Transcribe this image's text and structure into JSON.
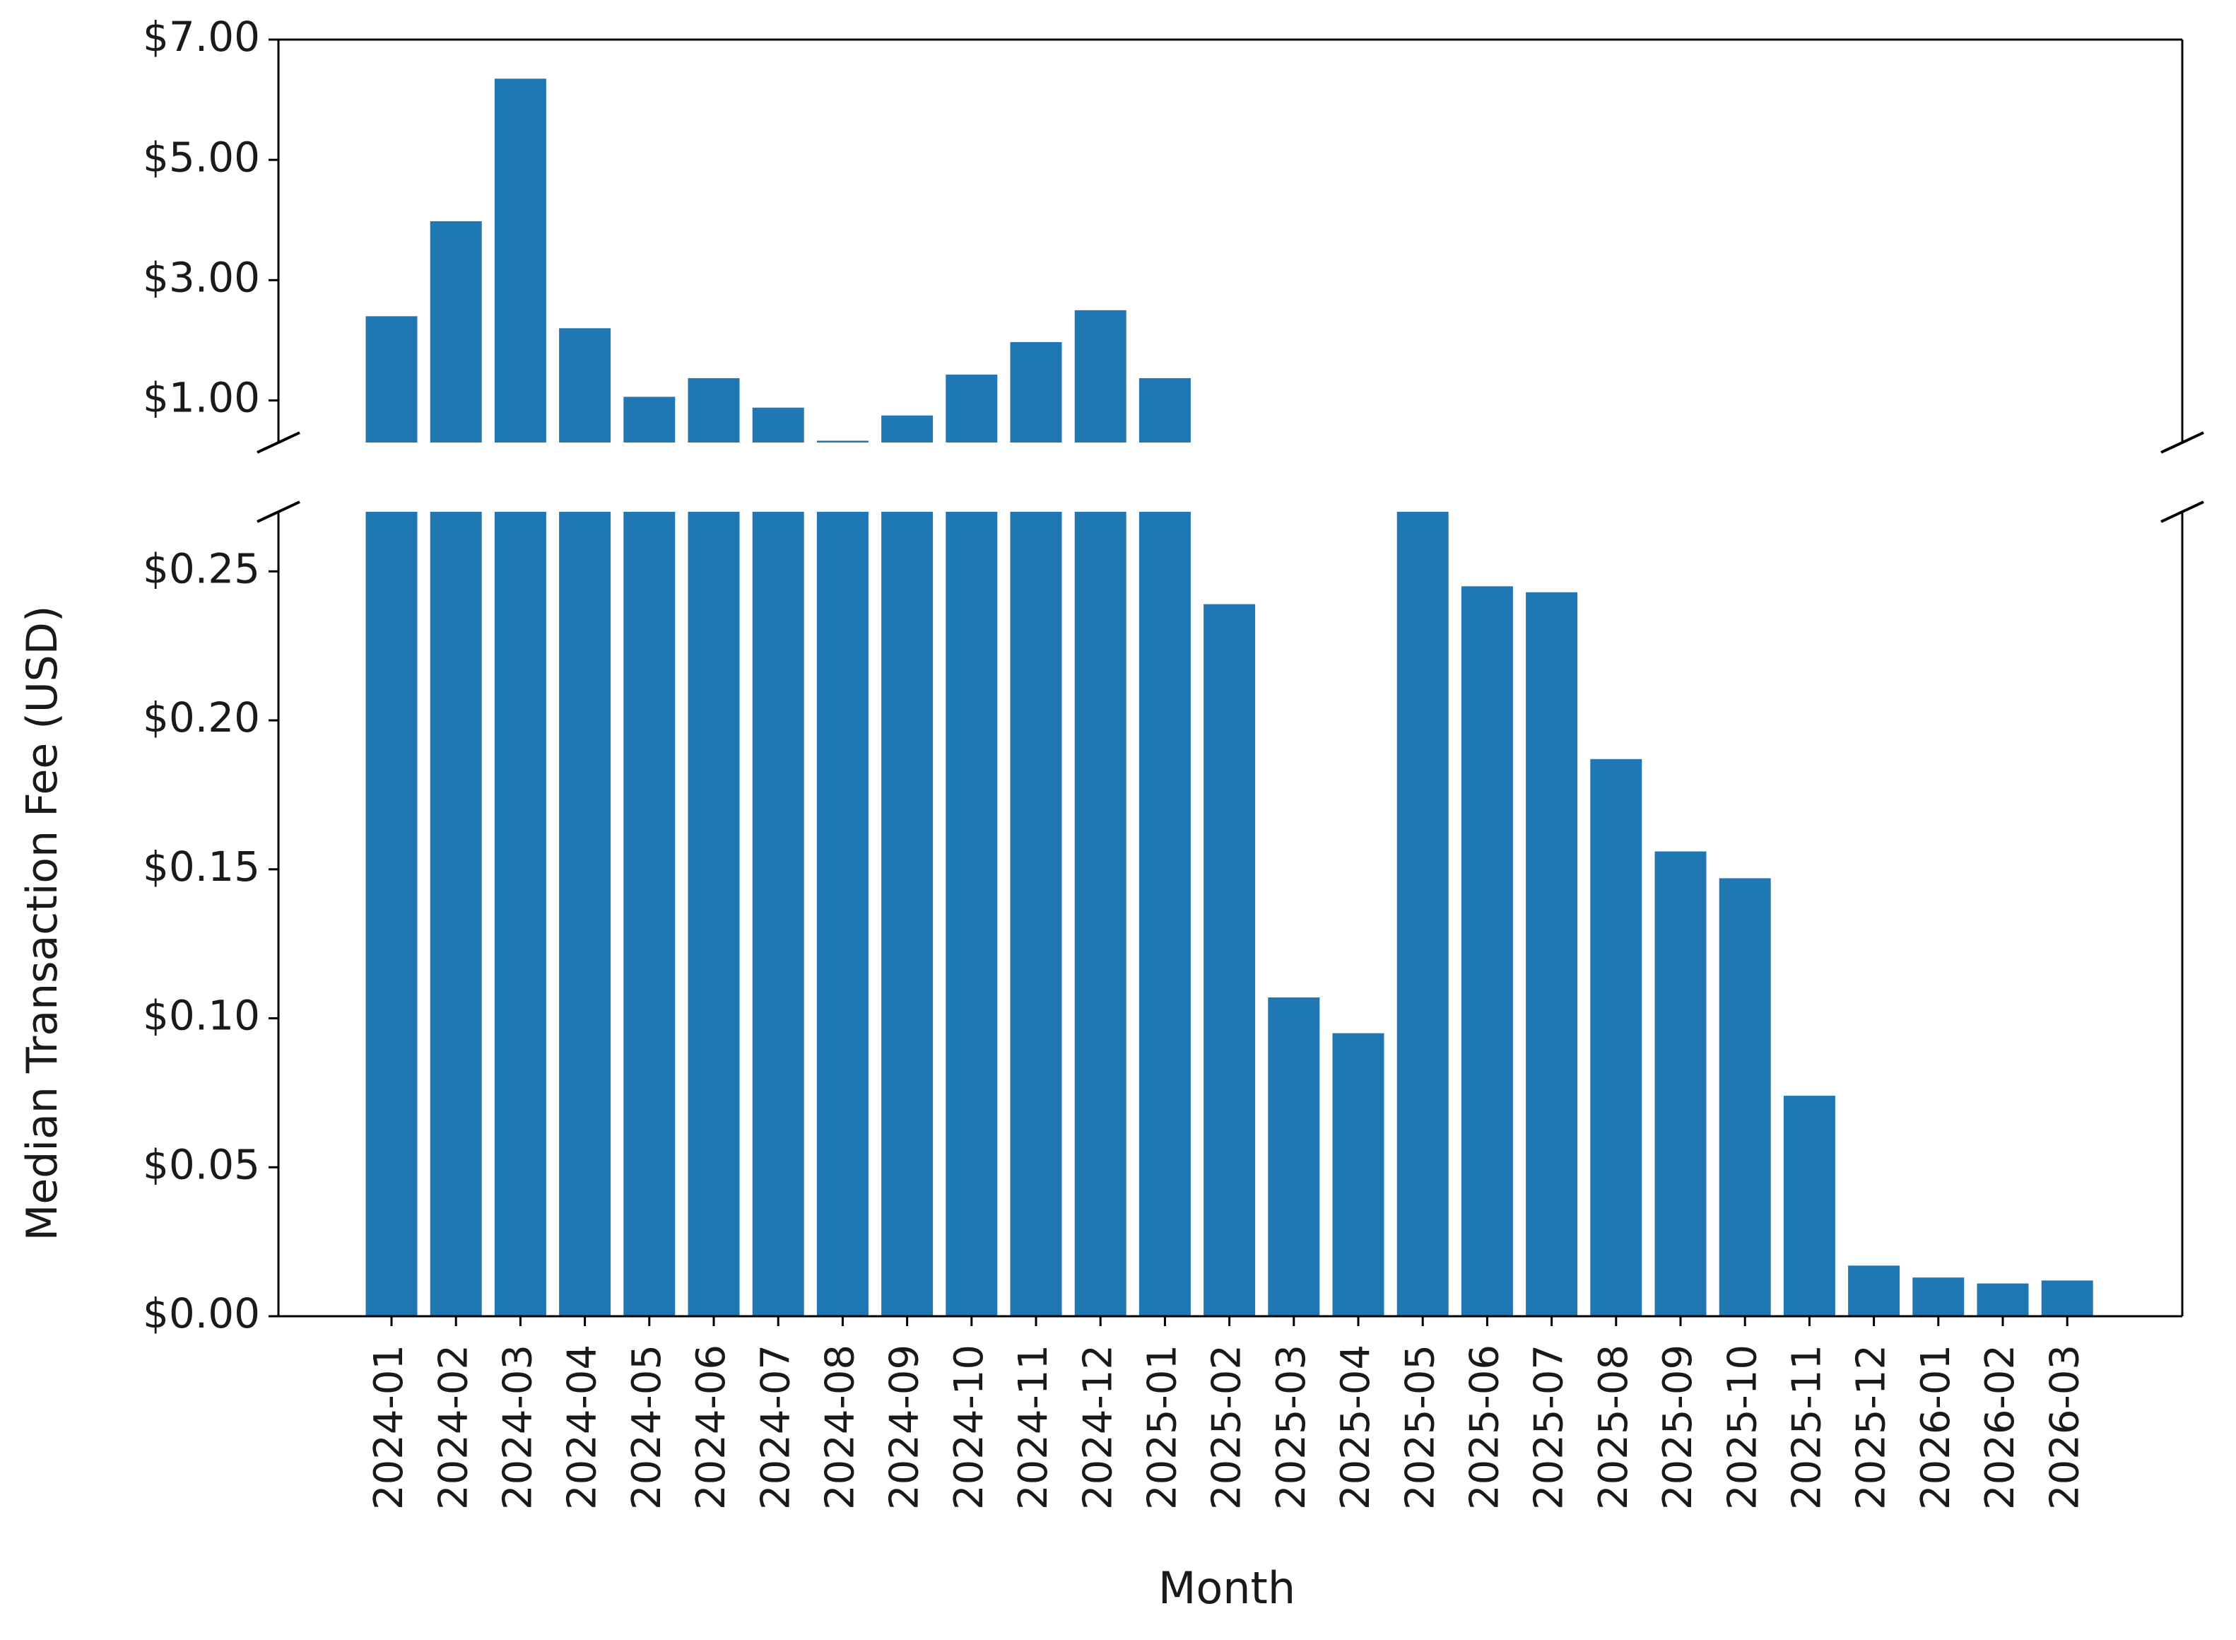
{
  "chart_data": {
    "type": "bar",
    "xlabel": "Month",
    "ylabel": "Median Transaction Fee (USD)",
    "broken_axis": true,
    "grid": false,
    "bar_color": "#1f77b4",
    "categories": [
      "2024-01",
      "2024-02",
      "2024-03",
      "2024-04",
      "2024-05",
      "2024-06",
      "2024-07",
      "2024-08",
      "2024-09",
      "2024-10",
      "2024-11",
      "2024-12",
      "2025-01",
      "2025-02",
      "2025-03",
      "2025-04",
      "2025-05",
      "2025-06",
      "2025-07",
      "2025-08",
      "2025-09",
      "2025-10",
      "2025-11",
      "2025-12",
      "2026-01",
      "2026-02",
      "2026-03"
    ],
    "values": [
      2.4,
      3.98,
      6.35,
      2.2,
      1.06,
      1.37,
      0.88,
      0.33,
      0.75,
      1.43,
      1.97,
      2.5,
      1.37,
      0.239,
      0.107,
      0.095,
      0.3,
      0.245,
      0.243,
      0.187,
      0.156,
      0.147,
      0.074,
      0.017,
      0.013,
      0.011,
      0.012
    ],
    "upper_panel": {
      "ylim": [
        0.3,
        7.0
      ],
      "ticks": [
        1.0,
        3.0,
        5.0,
        7.0
      ],
      "tick_labels": [
        "$1.00",
        "$3.00",
        "$5.00",
        "$7.00"
      ]
    },
    "lower_panel": {
      "ylim": [
        0.0,
        0.27
      ],
      "ticks": [
        0.0,
        0.05,
        0.1,
        0.15,
        0.2,
        0.25
      ],
      "tick_labels": [
        "$0.00",
        "$0.05",
        "$0.10",
        "$0.15",
        "$0.20",
        "$0.25"
      ]
    }
  }
}
